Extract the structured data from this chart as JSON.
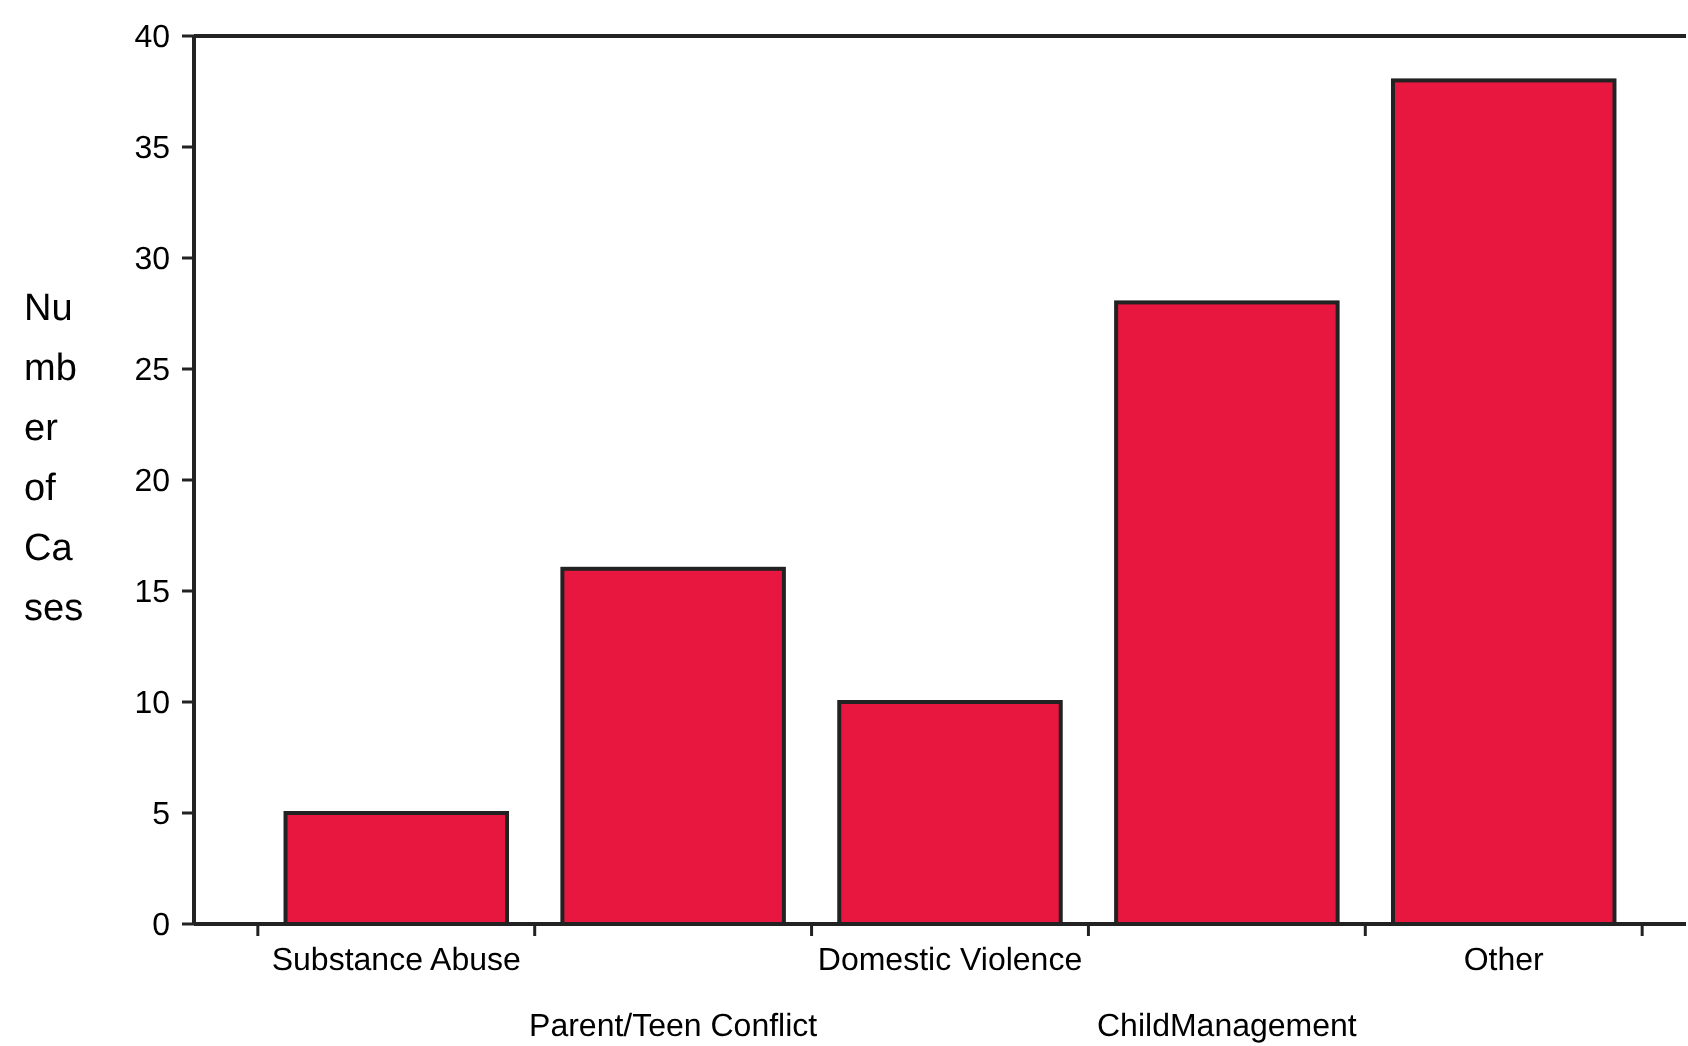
{
  "chart_data": {
    "type": "bar",
    "ylabel": "Number of Cases",
    "categories": [
      "Substance Abuse",
      "Parent/Teen Conflict",
      "Domestic Violence",
      "ChildManagement",
      "Other"
    ],
    "values": [
      5,
      16,
      10,
      28,
      38
    ],
    "color": "#e8173f",
    "ylim": [
      0,
      40
    ],
    "yticks": [
      0,
      5,
      10,
      15,
      20,
      25,
      30,
      35,
      40
    ],
    "grid": false
  }
}
